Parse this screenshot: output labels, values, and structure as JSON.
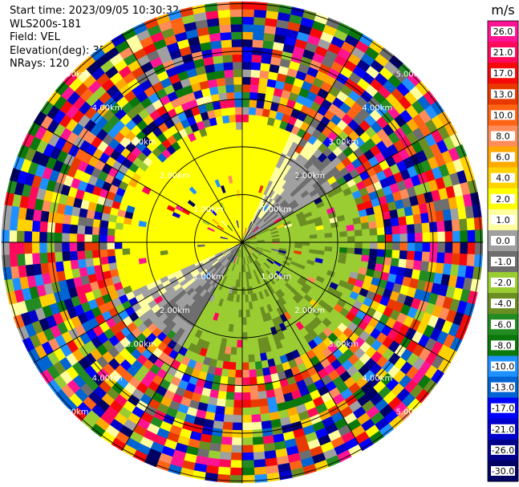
{
  "header": {
    "start_time": "Start time: 2023/09/05 10:30:32",
    "instrument": "WLS200s-181",
    "field": "Field: VEL",
    "elevation": "Elevation(deg): 35.30",
    "nrays": "NRays: 120"
  },
  "chart_data": {
    "type": "heatmap",
    "subtype": "polar-ppi",
    "field": "VEL",
    "nrays": 120,
    "elevation_deg": 35.3,
    "range_rings_km": [
      1,
      2,
      3,
      4,
      5
    ],
    "range_ring_labels": [
      "1.00km",
      "2.00km",
      "3.00km",
      "4.00km",
      "5.00km"
    ],
    "colorbar": {
      "unit": "m/s",
      "ticks": [
        "26.0",
        "21.0",
        "17.0",
        "13.0",
        "10.0",
        "8.0",
        "6.0",
        "4.0",
        "2.0",
        "1.0",
        "0.0",
        "-1.0",
        "-2.0",
        "-4.0",
        "-6.0",
        "-8.0",
        "-10.0",
        "-13.0",
        "-17.0",
        "-21.0",
        "-26.0",
        "-30.0"
      ],
      "colors": [
        "#ff1493",
        "#ff0a5a",
        "#f50a0a",
        "#e83a00",
        "#ff6414",
        "#ff8c5a",
        "#ffaa00",
        "#ffd200",
        "#ffff00",
        "#ffffa0",
        "#a0a0a0",
        "#6e6e6e",
        "#9acd32",
        "#6b8e23",
        "#228b22",
        "#0a780a",
        "#1e90ff",
        "#0064d2",
        "#0000ff",
        "#0000cd",
        "#00008b",
        "#000064"
      ]
    },
    "pattern": "near range: positive velocities (yellow) to the north-west, negative velocities (green) to the south-east, near-zero (grey) in between; beyond about 2.8 km the field is noise"
  }
}
